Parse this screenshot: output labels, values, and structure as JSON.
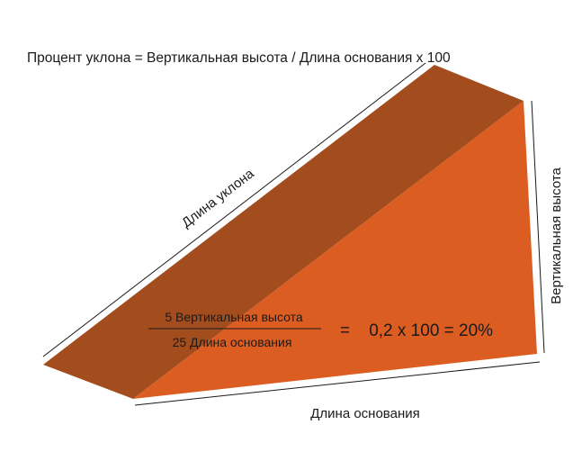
{
  "title": "Процент уклона = Вертикальная высота / Длина основания  x  100",
  "labels": {
    "slope_length": "Длина уклона",
    "vertical_height": "Вертикальная высота",
    "base_length": "Длина основания"
  },
  "formula": {
    "numerator": "5 Вертикальная высота",
    "denominator": "25 Длина основания",
    "result": "=    0,2 x 100 = 20%"
  },
  "colors": {
    "slope_face": "#a34d1e",
    "side_face": "#dc5d22",
    "lines": "#1a1a1a"
  }
}
